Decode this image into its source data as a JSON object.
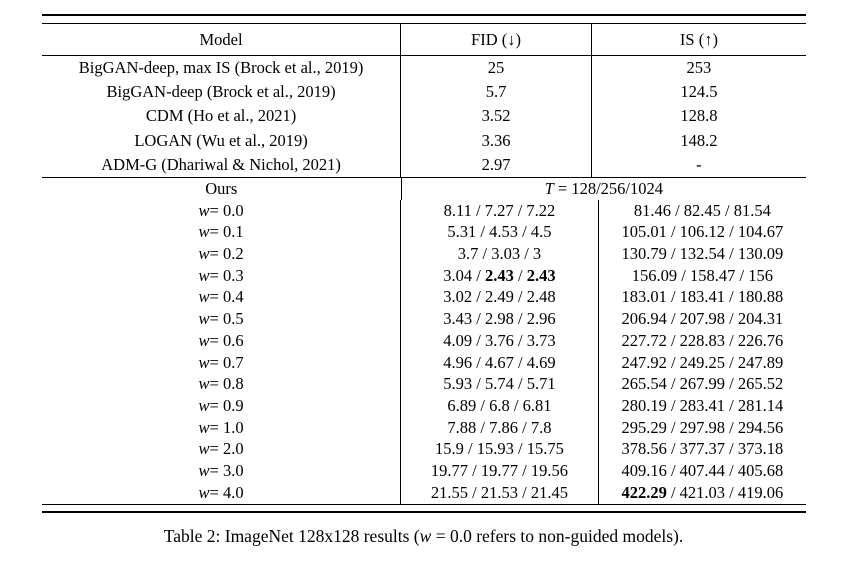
{
  "colors": {
    "ink": "#000000",
    "paper": "#ffffff"
  },
  "table": {
    "header": {
      "model": "Model",
      "fid": "FID (↓)",
      "is": "IS (↑)"
    },
    "baselines": [
      {
        "model": "BigGAN-deep, max IS (Brock et al., 2019)",
        "fid": "25",
        "is": "253"
      },
      {
        "model": "BigGAN-deep (Brock et al., 2019)",
        "fid": "5.7",
        "is": "124.5"
      },
      {
        "model": "CDM (Ho et al., 2021)",
        "fid": "3.52",
        "is": "128.8"
      },
      {
        "model": "LOGAN (Wu et al., 2019)",
        "fid": "3.36",
        "is": "148.2"
      },
      {
        "model": "ADM-G (Dhariwal & Nichol, 2021)",
        "fid": "2.97",
        "is": "-"
      }
    ],
    "ours": {
      "label": "Ours",
      "t_var": "T",
      "t_rest": " = 128/256/1024",
      "eq_sep": " = ",
      "value_sep": " / ",
      "rows": [
        {
          "var": "w",
          "value": "0.0",
          "fid": [
            "8.11",
            "7.27",
            "7.22"
          ],
          "fid_bold": [],
          "is": [
            "81.46",
            "82.45",
            "81.54"
          ],
          "is_bold": []
        },
        {
          "var": "w",
          "value": "0.1",
          "fid": [
            "5.31",
            "4.53",
            "4.5"
          ],
          "fid_bold": [],
          "is": [
            "105.01",
            "106.12",
            "104.67"
          ],
          "is_bold": []
        },
        {
          "var": "w",
          "value": "0.2",
          "fid": [
            "3.7",
            "3.03",
            "3"
          ],
          "fid_bold": [],
          "is": [
            "130.79",
            "132.54",
            "130.09"
          ],
          "is_bold": []
        },
        {
          "var": "w",
          "value": "0.3",
          "fid": [
            "3.04",
            "2.43",
            "2.43"
          ],
          "fid_bold": [
            1,
            2
          ],
          "is": [
            "156.09",
            "158.47",
            "156"
          ],
          "is_bold": []
        },
        {
          "var": "w",
          "value": "0.4",
          "fid": [
            "3.02",
            "2.49",
            "2.48"
          ],
          "fid_bold": [],
          "is": [
            "183.01",
            "183.41",
            "180.88"
          ],
          "is_bold": []
        },
        {
          "var": "w",
          "value": "0.5",
          "fid": [
            "3.43",
            "2.98",
            "2.96"
          ],
          "fid_bold": [],
          "is": [
            "206.94",
            "207.98",
            "204.31"
          ],
          "is_bold": []
        },
        {
          "var": "w",
          "value": "0.6",
          "fid": [
            "4.09",
            "3.76",
            "3.73"
          ],
          "fid_bold": [],
          "is": [
            "227.72",
            "228.83",
            "226.76"
          ],
          "is_bold": []
        },
        {
          "var": "w",
          "value": "0.7",
          "fid": [
            "4.96",
            "4.67",
            "4.69"
          ],
          "fid_bold": [],
          "is": [
            "247.92",
            "249.25",
            "247.89"
          ],
          "is_bold": []
        },
        {
          "var": "w",
          "value": "0.8",
          "fid": [
            "5.93",
            "5.74",
            "5.71"
          ],
          "fid_bold": [],
          "is": [
            "265.54",
            "267.99",
            "265.52"
          ],
          "is_bold": []
        },
        {
          "var": "w",
          "value": "0.9",
          "fid": [
            "6.89",
            "6.8",
            "6.81"
          ],
          "fid_bold": [],
          "is": [
            "280.19",
            "283.41",
            "281.14"
          ],
          "is_bold": []
        },
        {
          "var": "w",
          "value": "1.0",
          "fid": [
            "7.88",
            "7.86",
            "7.8"
          ],
          "fid_bold": [],
          "is": [
            "295.29",
            "297.98",
            "294.56"
          ],
          "is_bold": []
        },
        {
          "var": "w",
          "value": "2.0",
          "fid": [
            "15.9",
            "15.93",
            "15.75"
          ],
          "fid_bold": [],
          "is": [
            "378.56",
            "377.37",
            "373.18"
          ],
          "is_bold": []
        },
        {
          "var": "w",
          "value": "3.0",
          "fid": [
            "19.77",
            "19.77",
            "19.56"
          ],
          "fid_bold": [],
          "is": [
            "409.16",
            "407.44",
            "405.68"
          ],
          "is_bold": []
        },
        {
          "var": "w",
          "value": "4.0",
          "fid": [
            "21.55",
            "21.53",
            "21.45"
          ],
          "fid_bold": [],
          "is": [
            "422.29",
            "421.03",
            "419.06"
          ],
          "is_bold": [
            0
          ]
        }
      ]
    }
  },
  "caption": {
    "pre": "Table 2: ImageNet 128x128 results (",
    "var": "w",
    "post": " = 0.0 refers to non-guided models)."
  }
}
